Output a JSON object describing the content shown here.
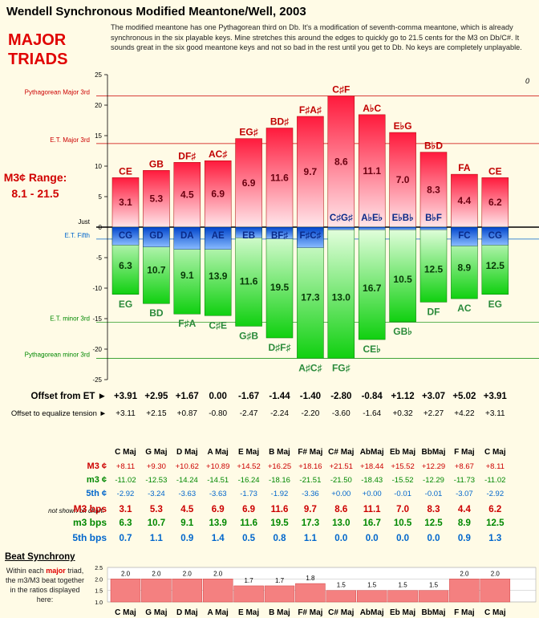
{
  "title": "Wendell Synchronous Modified Meantone/Well, 2003",
  "description": "The modified meantone has one Pythagorean third on Db. It's a modification of seventh-comma meantone, which is already synchronous in the six playable keys. Mine stretches this around the edges to quickly go to 21.5 cents for the M3 on Db/C#. It sounds great in the six good meantone keys and not so bad in the rest until you get to Db. No keys are completely unplayable.",
  "heading_line1": "MAJOR",
  "heading_line2": "TRIADS",
  "range_line1": "M3¢ Range:",
  "range_line2": "8.1 - 21.5",
  "corner_zero": "0",
  "chart_data": {
    "type": "bar",
    "ylim": [
      -25,
      25
    ],
    "yticks": [
      25,
      20,
      15,
      10,
      5,
      0,
      -5,
      -10,
      -15,
      -20,
      -25
    ],
    "reference_lines": [
      {
        "label": "Pythagorean Major 3rd",
        "y": 21.5,
        "color": "#cc0000"
      },
      {
        "label": "E.T. Major 3rd",
        "y": 13.7,
        "color": "#cc0000"
      },
      {
        "label": "Just",
        "y": 0,
        "color": "#000000"
      },
      {
        "label": "E.T. Fifth",
        "y": -1.96,
        "color": "#0066cc"
      },
      {
        "label": "E.T. minor 3rd",
        "y": -15.6,
        "color": "#008800"
      },
      {
        "label": "Pythagorean minor 3rd",
        "y": -21.5,
        "color": "#008800"
      }
    ],
    "series": [
      {
        "name": "M3 ¢",
        "values": [
          8.11,
          9.3,
          10.62,
          10.89,
          14.52,
          16.25,
          18.16,
          21.51,
          18.44,
          15.52,
          12.29,
          8.67,
          8.11
        ]
      },
      {
        "name": "m3 ¢",
        "values": [
          -11.02,
          -12.53,
          -14.24,
          -14.51,
          -16.24,
          -18.16,
          -21.51,
          -21.5,
          -18.43,
          -15.52,
          -12.29,
          -11.73,
          -11.02
        ]
      },
      {
        "name": "5th ¢",
        "values": [
          -2.92,
          -3.24,
          -3.63,
          -3.63,
          -1.73,
          -1.92,
          -3.36,
          0.0,
          0.0,
          -0.01,
          -0.01,
          -3.07,
          -2.92
        ]
      }
    ],
    "top_labels": [
      "CE",
      "GB",
      "DF♯",
      "AC♯",
      "EG♯",
      "BD♯",
      "F♯A♯",
      "C♯F",
      "A♭C",
      "E♭G",
      "B♭D",
      "FA",
      "CE"
    ],
    "fifth_labels": [
      "CG",
      "GD",
      "DA",
      "AE",
      "EB",
      "BF♯",
      "F♯C♯",
      "C♯G♯",
      "A♭E♭",
      "E♭B♭",
      "B♭F",
      "FC",
      "CG"
    ],
    "bottom_labels": [
      "EG",
      "BD",
      "F♯A",
      "C♯E",
      "G♯B",
      "D♯F♯",
      "A♯C♯",
      "FG♯",
      "CE♭",
      "GB♭",
      "DF",
      "AC",
      "EG"
    ],
    "m3_bps_labels": [
      "3.1",
      "5.3",
      "4.5",
      "6.9",
      "6.9",
      "11.6",
      "9.7",
      "8.6",
      "11.1",
      "7.0",
      "8.3",
      "4.4",
      "6.2"
    ],
    "minor_bps_labels": [
      "6.3",
      "10.7",
      "9.1",
      "13.9",
      "11.6",
      "19.5",
      "17.3",
      "13.0",
      "16.7",
      "10.5",
      "12.5",
      "8.9",
      "12.5"
    ]
  },
  "table": {
    "offset_et_label": "Offset from ET ►",
    "offset_et": [
      "+3.91",
      "+2.95",
      "+1.67",
      "0.00",
      "-1.67",
      "-1.44",
      "-1.40",
      "-2.80",
      "-0.84",
      "+1.12",
      "+3.07",
      "+5.02",
      "+3.91"
    ],
    "offset_eq_label": "Offset to equalize tension ►",
    "offset_eq": [
      "+3.11",
      "+2.15",
      "+0.87",
      "-0.80",
      "-2.47",
      "-2.24",
      "-2.20",
      "-3.60",
      "-1.64",
      "+0.32",
      "+2.27",
      "+4.22",
      "+3.11"
    ],
    "keys": [
      "C Maj",
      "G Maj",
      "D Maj",
      "A Maj",
      "E Maj",
      "B Maj",
      "F# Maj",
      "C# Maj",
      "AbMaj",
      "Eb Maj",
      "BbMaj",
      "F Maj",
      "C Maj"
    ],
    "rows": [
      {
        "label": "M3 ¢",
        "color": "#cc0000",
        "bold": false,
        "values": [
          "+8.11",
          "+9.30",
          "+10.62",
          "+10.89",
          "+14.52",
          "+16.25",
          "+18.16",
          "+21.51",
          "+18.44",
          "+15.52",
          "+12.29",
          "+8.67",
          "+8.11"
        ]
      },
      {
        "label": "m3 ¢",
        "color": "#008800",
        "bold": false,
        "values": [
          "-11.02",
          "-12.53",
          "-14.24",
          "-14.51",
          "-16.24",
          "-18.16",
          "-21.51",
          "-21.50",
          "-18.43",
          "-15.52",
          "-12.29",
          "-11.73",
          "-11.02"
        ]
      },
      {
        "label": "5th ¢",
        "color": "#0066cc",
        "bold": false,
        "values": [
          "-2.92",
          "-3.24",
          "-3.63",
          "-3.63",
          "-1.73",
          "-1.92",
          "-3.36",
          "+0.00",
          "+0.00",
          "-0.01",
          "-0.01",
          "-3.07",
          "-2.92"
        ]
      },
      {
        "label": "M3 bps",
        "color": "#cc0000",
        "bold": true,
        "values": [
          "3.1",
          "5.3",
          "4.5",
          "6.9",
          "6.9",
          "11.6",
          "9.7",
          "8.6",
          "11.1",
          "7.0",
          "8.3",
          "4.4",
          "6.2"
        ]
      },
      {
        "label": "m3 bps",
        "color": "#008800",
        "bold": true,
        "values": [
          "6.3",
          "10.7",
          "9.1",
          "13.9",
          "11.6",
          "19.5",
          "17.3",
          "13.0",
          "16.7",
          "10.5",
          "12.5",
          "8.9",
          "12.5"
        ]
      },
      {
        "label": "5th bps",
        "color": "#0066cc",
        "bold": true,
        "values": [
          "0.7",
          "1.1",
          "0.9",
          "1.4",
          "0.5",
          "0.8",
          "1.1",
          "0.0",
          "0.0",
          "0.0",
          "0.0",
          "0.9",
          "1.3"
        ]
      }
    ],
    "not_shown": "not shown on chart:"
  },
  "beat": {
    "title": "Beat Synchrony",
    "desc_pre": "Within each ",
    "desc_major": "major",
    "desc_post": " triad, the m3/M3 beat together in the ratios displayed here:",
    "chart_data": {
      "type": "bar",
      "categories": [
        "C Maj",
        "G Maj",
        "D Maj",
        "A Maj",
        "E Maj",
        "B Maj",
        "F# Maj",
        "C# Maj",
        "AbMaj",
        "Eb Maj",
        "BbMaj",
        "F Maj",
        "C Maj"
      ],
      "values": [
        2.0,
        2.0,
        2.0,
        2.0,
        1.7,
        1.7,
        1.8,
        1.5,
        1.5,
        1.5,
        1.5,
        2.0,
        2.0
      ],
      "labels": [
        "2.0",
        "2.0",
        "2.0",
        "2.0",
        "1.7",
        "1.7",
        "1.8",
        "1.5",
        "1.5",
        "1.5",
        "1.5",
        "2.0",
        "2.0"
      ],
      "ylim": [
        1.0,
        2.5
      ],
      "yticks": [
        "2.5",
        "2.0",
        "1.5",
        "1.0"
      ]
    }
  }
}
